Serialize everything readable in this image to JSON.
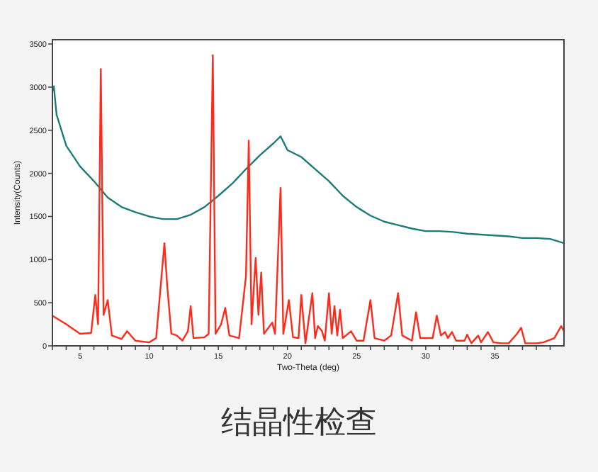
{
  "chart_data": {
    "type": "line",
    "title": "结晶性检查",
    "xlabel": "Two-Theta (deg)",
    "ylabel": "Intensity(Counts)",
    "xlim": [
      3,
      40
    ],
    "ylim": [
      0,
      3550
    ],
    "xticks": [
      {
        "value": 3,
        "label": null
      },
      {
        "value": 4,
        "label": null
      },
      5,
      {
        "value": 6,
        "label": null
      },
      {
        "value": 7,
        "label": null
      },
      {
        "value": 8,
        "label": null
      },
      {
        "value": 9,
        "label": null
      },
      10,
      {
        "value": 11,
        "label": null
      },
      {
        "value": 12,
        "label": null
      },
      {
        "value": 13,
        "label": null
      },
      {
        "value": 14,
        "label": null
      },
      15,
      {
        "value": 16,
        "label": null
      },
      {
        "value": 17,
        "label": null
      },
      {
        "value": 18,
        "label": null
      },
      {
        "value": 19,
        "label": null
      },
      20,
      {
        "value": 21,
        "label": null
      },
      {
        "value": 22,
        "label": null
      },
      {
        "value": 23,
        "label": null
      },
      {
        "value": 24,
        "label": null
      },
      25,
      {
        "value": 26,
        "label": null
      },
      {
        "value": 27,
        "label": null
      },
      {
        "value": 28,
        "label": null
      },
      {
        "value": 29,
        "label": null
      },
      30,
      {
        "value": 31,
        "label": null
      },
      {
        "value": 32,
        "label": null
      },
      {
        "value": 33,
        "label": null
      },
      {
        "value": 34,
        "label": null
      },
      35,
      {
        "value": 36,
        "label": null
      },
      {
        "value": 37,
        "label": null
      },
      {
        "value": 38,
        "label": null
      },
      {
        "value": 39,
        "label": null
      }
    ],
    "yticks": [
      0,
      500,
      1000,
      1500,
      2000,
      2500,
      3000,
      3500
    ],
    "series": [
      {
        "color": "#1e7b78",
        "x": [
          3.0,
          3.1,
          3.3,
          4,
          5,
          6,
          7,
          8,
          9,
          10,
          11,
          12,
          13,
          14,
          15,
          16,
          17,
          18,
          19,
          19.5,
          20,
          21,
          22,
          23,
          24,
          25,
          26,
          27,
          28,
          29,
          30,
          31,
          32,
          33,
          34,
          35,
          36,
          37,
          38,
          39,
          40
        ],
        "values": [
          2960,
          3010,
          2680,
          2320,
          2080,
          1910,
          1720,
          1610,
          1550,
          1500,
          1470,
          1470,
          1520,
          1610,
          1740,
          1880,
          2050,
          2210,
          2350,
          2430,
          2270,
          2190,
          2050,
          1910,
          1740,
          1610,
          1510,
          1440,
          1400,
          1360,
          1330,
          1330,
          1320,
          1300,
          1290,
          1280,
          1270,
          1250,
          1250,
          1240,
          1190
        ]
      },
      {
        "color": "#ff2a1a",
        "x": [
          3,
          4,
          5,
          5.8,
          6.1,
          6.3,
          6.5,
          6.7,
          7.0,
          7.3,
          8.0,
          8.4,
          9,
          10,
          10.5,
          11.1,
          11.3,
          11.6,
          12,
          12.4,
          12.8,
          13.0,
          13.2,
          14,
          14.3,
          14.6,
          14.8,
          15.2,
          15.5,
          15.8,
          16.5,
          17.0,
          17.2,
          17.4,
          17.7,
          17.9,
          18.1,
          18.3,
          18.9,
          19.1,
          19.5,
          19.7,
          20.1,
          20.4,
          20.8,
          21.0,
          21.3,
          21.8,
          22.0,
          22.2,
          22.5,
          22.7,
          23.0,
          23.2,
          23.4,
          23.6,
          23.8,
          24.0,
          24.6,
          25,
          25.5,
          26.0,
          26.3,
          27,
          27.5,
          28.0,
          28.3,
          29,
          29.3,
          29.6,
          30.5,
          30.8,
          31.1,
          31.4,
          31.6,
          31.9,
          32.2,
          32.8,
          33.0,
          33.3,
          33.8,
          34.0,
          34.5,
          34.9,
          35.5,
          36,
          36.6,
          36.9,
          37.2,
          38,
          38.5,
          39.3,
          39.8,
          40
        ],
        "values": [
          350,
          250,
          140,
          150,
          590,
          250,
          3210,
          360,
          530,
          120,
          80,
          170,
          60,
          40,
          90,
          1190,
          700,
          140,
          120,
          60,
          170,
          460,
          90,
          100,
          140,
          3370,
          140,
          250,
          440,
          120,
          90,
          810,
          2380,
          250,
          1020,
          360,
          850,
          140,
          270,
          140,
          1830,
          140,
          530,
          100,
          90,
          590,
          30,
          610,
          90,
          230,
          170,
          60,
          610,
          140,
          460,
          120,
          420,
          90,
          170,
          60,
          60,
          530,
          90,
          60,
          120,
          610,
          120,
          60,
          390,
          90,
          90,
          350,
          120,
          160,
          90,
          160,
          60,
          60,
          130,
          30,
          120,
          40,
          160,
          40,
          30,
          30,
          140,
          210,
          30,
          30,
          40,
          90,
          230,
          170
        ]
      }
    ]
  }
}
